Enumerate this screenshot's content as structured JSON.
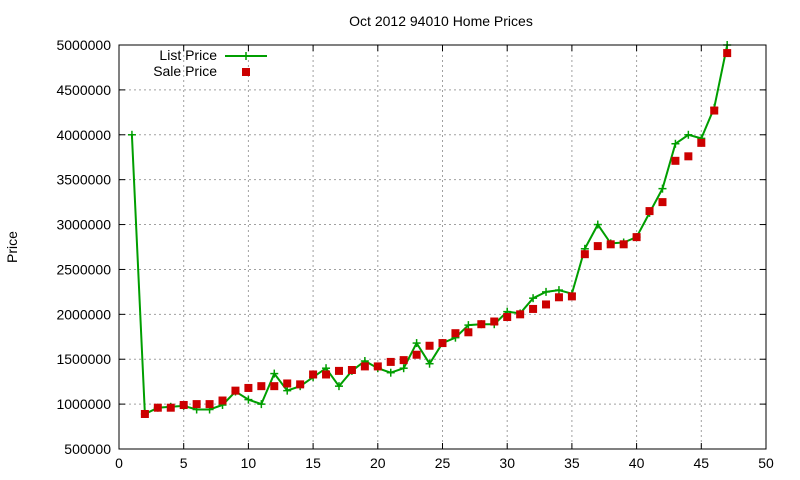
{
  "chart_data": {
    "type": "line",
    "title": "Oct 2012 94010 Home Prices",
    "xlabel": "",
    "ylabel": "Price",
    "xlim": [
      0,
      50
    ],
    "ylim": [
      500000,
      5000000
    ],
    "xticks": [
      0,
      5,
      10,
      15,
      20,
      25,
      30,
      35,
      40,
      45,
      50
    ],
    "yticks": [
      500000,
      1000000,
      1500000,
      2000000,
      2500000,
      3000000,
      3500000,
      4000000,
      4500000,
      5000000
    ],
    "grid": true,
    "legend_position": "top-left",
    "series": [
      {
        "name": "List Price",
        "style": "line-plus",
        "color": "#009e00",
        "x": [
          1,
          2,
          3,
          4,
          5,
          6,
          7,
          8,
          9,
          10,
          11,
          12,
          13,
          14,
          15,
          16,
          17,
          18,
          19,
          20,
          21,
          22,
          23,
          24,
          25,
          26,
          27,
          28,
          29,
          30,
          31,
          32,
          33,
          34,
          35,
          36,
          37,
          38,
          39,
          40,
          41,
          42,
          43,
          44,
          45,
          46,
          47
        ],
        "values": [
          4000000,
          890000,
          960000,
          970000,
          980000,
          940000,
          940000,
          990000,
          1140000,
          1050000,
          1000000,
          1340000,
          1150000,
          1200000,
          1300000,
          1400000,
          1200000,
          1370000,
          1480000,
          1400000,
          1350000,
          1400000,
          1680000,
          1450000,
          1680000,
          1740000,
          1880000,
          1890000,
          1890000,
          2030000,
          2010000,
          2180000,
          2250000,
          2270000,
          2230000,
          2730000,
          3000000,
          2790000,
          2800000,
          2860000,
          3130000,
          3400000,
          3900000,
          4000000,
          3960000,
          4300000,
          5000000
        ]
      },
      {
        "name": "Sale Price",
        "style": "square",
        "color": "#cc0000",
        "x": [
          2,
          3,
          4,
          5,
          6,
          7,
          8,
          9,
          10,
          11,
          12,
          13,
          14,
          15,
          16,
          17,
          18,
          19,
          20,
          21,
          22,
          23,
          24,
          25,
          26,
          27,
          28,
          29,
          30,
          31,
          32,
          33,
          34,
          35,
          36,
          37,
          38,
          39,
          40,
          41,
          42,
          43,
          44,
          45,
          46,
          47
        ],
        "values": [
          890000,
          960000,
          960000,
          990000,
          1000000,
          1000000,
          1040000,
          1150000,
          1180000,
          1200000,
          1200000,
          1230000,
          1220000,
          1330000,
          1330000,
          1370000,
          1380000,
          1420000,
          1420000,
          1470000,
          1490000,
          1550000,
          1650000,
          1680000,
          1790000,
          1800000,
          1890000,
          1920000,
          1970000,
          2000000,
          2060000,
          2110000,
          2190000,
          2200000,
          2670000,
          2760000,
          2780000,
          2780000,
          2860000,
          3150000,
          3250000,
          3710000,
          3760000,
          3910000,
          4270000,
          4910000
        ]
      }
    ]
  }
}
